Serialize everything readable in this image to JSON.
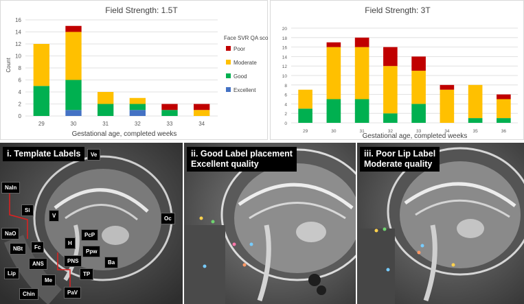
{
  "legend": {
    "title": "Face SVR QA score",
    "items": [
      {
        "name": "Poor",
        "color": "#c00000"
      },
      {
        "name": "Moderate",
        "color": "#ffc000"
      },
      {
        "name": "Good",
        "color": "#00b050"
      },
      {
        "name": "Excellent",
        "color": "#4472c4"
      }
    ]
  },
  "chart_data": [
    {
      "type": "bar",
      "stacked": true,
      "title": "Field Strength: 1.5T",
      "xlabel": "Gestational age, completed weeks",
      "ylabel": "Count",
      "categories": [
        "29",
        "30",
        "31",
        "32",
        "33",
        "34"
      ],
      "ylim": [
        0,
        16
      ],
      "yticks": [
        0,
        2,
        4,
        6,
        8,
        10,
        12,
        14,
        16
      ],
      "series": [
        {
          "name": "Excellent",
          "values": [
            0,
            1,
            0,
            1,
            0,
            0
          ]
        },
        {
          "name": "Good",
          "values": [
            5,
            5,
            2,
            1,
            1,
            0
          ]
        },
        {
          "name": "Moderate",
          "values": [
            7,
            8,
            2,
            1,
            0,
            1
          ]
        },
        {
          "name": "Poor",
          "values": [
            0,
            1,
            0,
            0,
            1,
            1
          ]
        }
      ],
      "legend_position": "right"
    },
    {
      "type": "bar",
      "stacked": true,
      "title": "Field Strength: 3T",
      "xlabel": "Gestational age, completed weeks",
      "ylabel": "",
      "categories": [
        "29",
        "30",
        "31",
        "32",
        "33",
        "34",
        "35",
        "36"
      ],
      "ylim": [
        0,
        20
      ],
      "yticks": [
        0,
        2,
        4,
        6,
        8,
        10,
        12,
        14,
        16,
        18,
        20
      ],
      "series": [
        {
          "name": "Excellent",
          "values": [
            0,
            0,
            0,
            0,
            0,
            0,
            0,
            0
          ]
        },
        {
          "name": "Good",
          "values": [
            3,
            5,
            5,
            2,
            4,
            0,
            1,
            1
          ]
        },
        {
          "name": "Moderate",
          "values": [
            4,
            11,
            11,
            10,
            7,
            7,
            7,
            4
          ]
        },
        {
          "name": "Poor",
          "values": [
            0,
            1,
            2,
            4,
            3,
            1,
            0,
            1
          ]
        }
      ]
    }
  ],
  "images": {
    "panel1": {
      "caption": "i. Template Labels",
      "labels": [
        "Ve",
        "NaIn",
        "Si",
        "V",
        "Oc",
        "NaO",
        "PcP",
        "NBt",
        "Fc",
        "H",
        "Ppw",
        "ANS",
        "PNS",
        "Ba",
        "Lip",
        "Me",
        "TP",
        "Chin",
        "PaV"
      ]
    },
    "panel2": {
      "caption_line1": "ii. Good Label placement",
      "caption_line2": "Excellent quality"
    },
    "panel3": {
      "caption_line1": "iii. Poor Lip Label",
      "caption_line2": "Moderate quality"
    }
  }
}
